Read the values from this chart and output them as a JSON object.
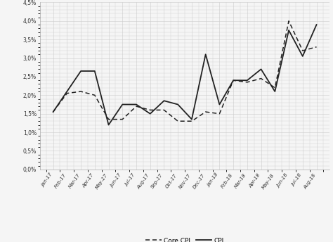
{
  "x_labels": [
    "Jan-17",
    "Feb-17",
    "Mar-17",
    "Apr-17",
    "May-17",
    "Jun-17",
    "Jul-17",
    "Aug-17",
    "Sep-17",
    "Oct-17",
    "Nov-17",
    "Dec-17",
    "Jan-18",
    "Feb-18",
    "Mar-18",
    "Apr-18",
    "May-18",
    "Jun-18",
    "Jul-18",
    "Aug-18"
  ],
  "core_cpi": [
    1.55,
    2.05,
    2.1,
    2.0,
    1.35,
    1.35,
    1.7,
    1.6,
    1.6,
    1.3,
    1.3,
    1.55,
    1.5,
    2.4,
    2.35,
    2.45,
    2.2,
    4.0,
    3.2,
    3.3
  ],
  "cpi": [
    1.55,
    2.1,
    2.65,
    2.65,
    1.2,
    1.75,
    1.75,
    1.5,
    1.85,
    1.75,
    1.35,
    3.1,
    1.75,
    2.4,
    2.4,
    2.7,
    2.1,
    3.75,
    3.05,
    3.9
  ],
  "ylim": [
    0.0,
    4.5
  ],
  "yticks": [
    0.0,
    0.5,
    1.0,
    1.5,
    2.0,
    2.5,
    3.0,
    3.5,
    4.0,
    4.5
  ],
  "line_color": "#222222",
  "background_color": "#f5f5f5",
  "grid_color": "#cccccc",
  "legend_labels": [
    "Core CPI",
    "CPI"
  ]
}
